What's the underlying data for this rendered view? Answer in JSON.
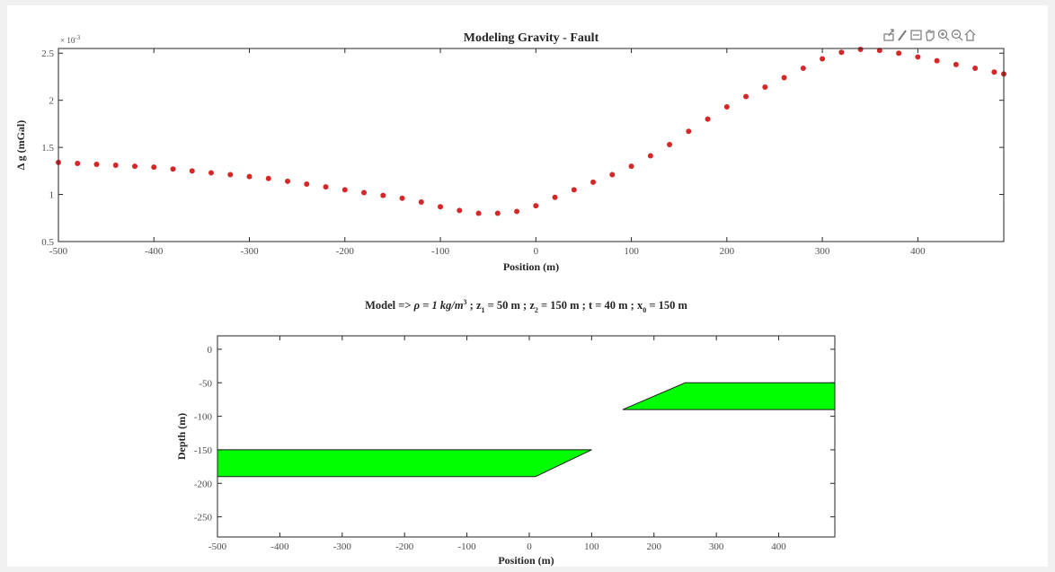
{
  "toolbar": {
    "buttons": [
      {
        "name": "export-icon",
        "label": "Export"
      },
      {
        "name": "brush-icon",
        "label": "Brush"
      },
      {
        "name": "datatip-icon",
        "label": "Data Tips"
      },
      {
        "name": "pan-icon",
        "label": "Pan"
      },
      {
        "name": "zoom-in-icon",
        "label": "Zoom In"
      },
      {
        "name": "zoom-out-icon",
        "label": "Zoom Out"
      },
      {
        "name": "home-icon",
        "label": "Restore View"
      }
    ]
  },
  "chart_data": [
    {
      "type": "scatter",
      "title": "Modeling Gravity - Fault",
      "xlabel": "Position (m)",
      "ylabel": "Δ g (mGal)",
      "y_exponent_label": "× 10",
      "y_exponent": "-3",
      "xlim": [
        -500,
        490
      ],
      "ylim": [
        0.5,
        2.55
      ],
      "x_ticks": [
        -500,
        -400,
        -300,
        -200,
        -100,
        0,
        100,
        200,
        300,
        400
      ],
      "y_ticks": [
        0.5,
        1,
        1.5,
        2,
        2.5
      ],
      "y_tick_labels": [
        "0.5",
        "1",
        "1.5",
        "2",
        "2.5"
      ],
      "marker_color": "#d62728",
      "series": [
        {
          "x": [
            -500,
            -480,
            -460,
            -440,
            -420,
            -400,
            -380,
            -360,
            -340,
            -320,
            -300,
            -280,
            -260,
            -240,
            -220,
            -200,
            -180,
            -160,
            -140,
            -120,
            -100,
            -80,
            -60,
            -40,
            -20,
            0,
            20,
            40,
            60,
            80,
            100,
            120,
            140,
            160,
            180,
            200,
            220,
            240,
            260,
            280,
            300,
            320,
            340,
            360,
            380,
            400,
            420,
            440,
            460,
            480,
            490
          ],
          "y": [
            1.34,
            1.33,
            1.32,
            1.31,
            1.3,
            1.29,
            1.27,
            1.25,
            1.23,
            1.21,
            1.19,
            1.17,
            1.14,
            1.11,
            1.08,
            1.05,
            1.02,
            0.99,
            0.96,
            0.92,
            0.87,
            0.83,
            0.8,
            0.8,
            0.82,
            0.88,
            0.97,
            1.05,
            1.13,
            1.21,
            1.3,
            1.41,
            1.53,
            1.67,
            1.8,
            1.93,
            2.04,
            2.14,
            2.24,
            2.34,
            2.44,
            2.51,
            2.54,
            2.53,
            2.5,
            2.46,
            2.42,
            2.38,
            2.34,
            2.3,
            2.28
          ]
        }
      ]
    },
    {
      "type": "polygon",
      "title_parts": {
        "prefix": "Model => ",
        "rho": "ρ = 1 kg/m",
        "rho_sup": "3",
        "z1_pre": " ; z",
        "z1_sub": "1",
        "z1_val": " = 50 m ; z",
        "z2_sub": "2",
        "z2_val": " = 150 m ; t = 40 m ; x",
        "x0_sub": "0",
        "x0_val": " = 150 m"
      },
      "xlabel": "Position (m)",
      "ylabel": "Depth (m)",
      "xlim": [
        -500,
        490
      ],
      "ylim": [
        -280,
        20
      ],
      "x_ticks": [
        -500,
        -400,
        -300,
        -200,
        -100,
        0,
        100,
        200,
        300,
        400
      ],
      "y_ticks": [
        0,
        -50,
        -100,
        -150,
        -200,
        -250
      ],
      "fill_color": "#00ff00",
      "polygons": [
        {
          "name": "fault-block-deep",
          "points": [
            [
              -500,
              -150
            ],
            [
              100,
              -150
            ],
            [
              10,
              -190
            ],
            [
              -500,
              -190
            ]
          ]
        },
        {
          "name": "fault-block-shallow",
          "points": [
            [
              150,
              -90
            ],
            [
              250,
              -50
            ],
            [
              490,
              -50
            ],
            [
              490,
              -90
            ]
          ]
        }
      ]
    }
  ]
}
